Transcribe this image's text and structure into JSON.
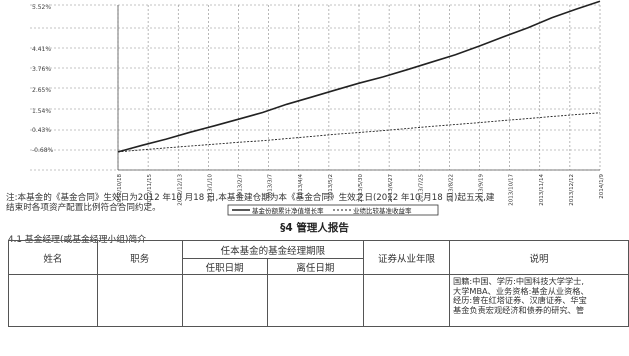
{
  "chart_data": {
    "type": "line",
    "y_tick_labels": [
      "5.52%",
      "4.41%",
      "3.76%",
      "2.65%",
      "1.54%",
      "0.43%",
      "-0.68%"
    ],
    "x_tick_labels": [
      "2012/10/18",
      "2012/11/15",
      "2012/12/13",
      "2013/1/10",
      "2013/2/7",
      "2013/3/7",
      "2013/4/4",
      "2013/5/2",
      "2013/5/30",
      "2013/6/27",
      "2013/7/25",
      "2013/8/22",
      "2013/9/19",
      "2013/10/17",
      "2013/11/14",
      "2013/12/12",
      "2014/1/9"
    ],
    "grid": true,
    "legend": "bottom-center",
    "legend_entries": [
      "基金份额累计净值增长率",
      "业绩比较基准收益率"
    ],
    "series": [
      {
        "values": [
          0.0,
          0.25,
          0.48,
          0.74,
          0.98,
          1.23,
          1.48,
          1.79,
          2.05,
          2.32,
          2.58,
          2.82,
          3.09,
          3.37,
          3.65,
          3.98,
          4.33,
          4.66,
          5.04,
          5.36,
          5.66
        ]
      },
      {
        "values": [
          0.0,
          0.08,
          0.15,
          0.22,
          0.29,
          0.36,
          0.42,
          0.5,
          0.58,
          0.66,
          0.73,
          0.8,
          0.88,
          0.96,
          1.03,
          1.1,
          1.18,
          1.25,
          1.33,
          1.4,
          1.47
        ]
      }
    ]
  },
  "note": {
    "line1": "注:本基金的《基金合同》生效日为2012 年10 月18 日,本基金建仓期为本《基金合同》生效之日(2012 年10 月18 日)起五天,建",
    "line2": "结束时各项资产配置比例符合合同约定。"
  },
  "section_title": "§4 管理人报告",
  "subsection": "4.1 基金经理(或基金经理小组)简介",
  "table": {
    "col_name": "姓名",
    "col_title": "职务",
    "col_term": "任本基金的基金经理期限",
    "col_start": "任职日期",
    "col_end": "离任日期",
    "col_years": "证券从业年限",
    "col_desc": "说明",
    "desc_lines": [
      "国籍:中国、学历:中国科技大学学士,",
      "大学MBA、业务资格:基金从业资格、",
      "经历:曾在红塔证券、汉唐证券、华宝",
      "基金负责宏观经济和债券的研究、管"
    ]
  }
}
